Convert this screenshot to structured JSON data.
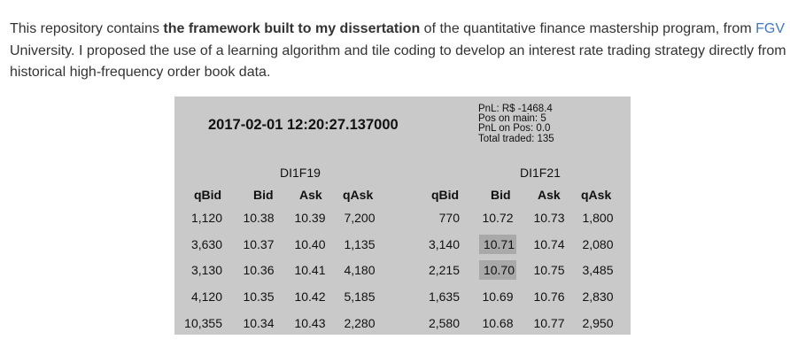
{
  "intro": {
    "t1": "This repository contains ",
    "bold": "the framework built to my dissertation",
    "t2": " of the quantitative finance mastership program, from ",
    "link": "FGV",
    "t3": " University. I proposed the use of a learning algorithm and tile coding to develop an interest rate trading strategy directly from historical high-frequency order book data."
  },
  "screenshot": {
    "timestamp": "2017-02-01 12:20:27.137000",
    "stats": {
      "pnl": "PnL: R$ -1468.4",
      "pos_main": "Pos on main: 5",
      "pnl_pos": "PnL on Pos: 0.0",
      "total_traded": "Total traded: 135"
    },
    "books": [
      {
        "symbol": "DI1F19",
        "headers": [
          "qBid",
          "Bid",
          "Ask",
          "qAsk"
        ],
        "rows": [
          [
            "1,120",
            "10.38",
            "10.39",
            "7,200"
          ],
          [
            "3,630",
            "10.37",
            "10.40",
            "1,135"
          ],
          [
            "3,130",
            "10.36",
            "10.41",
            "4,180"
          ],
          [
            "4,120",
            "10.35",
            "10.42",
            "5,185"
          ],
          [
            "10,355",
            "10.34",
            "10.43",
            "2,280"
          ]
        ]
      },
      {
        "symbol": "DI1F21",
        "headers": [
          "qBid",
          "Bid",
          "Ask",
          "qAsk"
        ],
        "rows": [
          [
            "770",
            "10.72",
            "10.73",
            "1,800"
          ],
          [
            "3,140",
            "10.71",
            "10.74",
            "2,080"
          ],
          [
            "2,215",
            "10.70",
            "10.75",
            "3,485"
          ],
          [
            "1,635",
            "10.69",
            "10.76",
            "2,830"
          ],
          [
            "2,580",
            "10.68",
            "10.77",
            "2,950"
          ]
        ]
      }
    ]
  }
}
